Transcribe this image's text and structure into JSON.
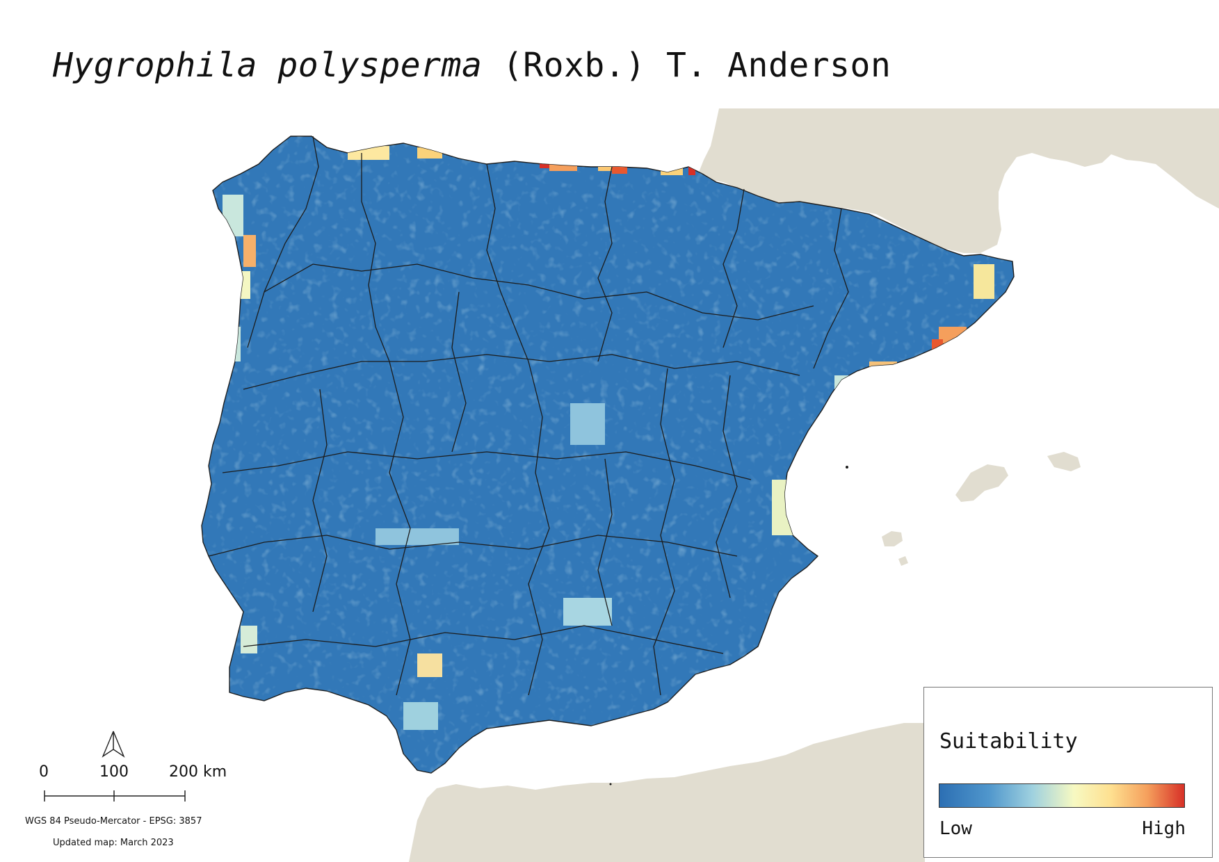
{
  "title": {
    "species": "Hygrophila polysperma",
    "authority": " (Roxb.) T. Anderson"
  },
  "legend": {
    "title": "Suitability",
    "low_label": "Low",
    "high_label": "High",
    "ramp_colors": [
      "#2c6fb3",
      "#4f96cc",
      "#9fd1df",
      "#f3f7c4",
      "#fee090",
      "#f59f5c",
      "#d73027"
    ]
  },
  "scale": {
    "tick_0": "0",
    "tick_100": "100",
    "tick_200": "200 km"
  },
  "notes": {
    "crs": "WGS 84 Pseudo-Mercator  - EPSG: 3857",
    "updated": "Updated map: March 2023"
  },
  "map": {
    "land_color": "#e1ddd0",
    "sea_color": "#ffffff",
    "low_color": "#2f75b5",
    "boundary_color": "#1c1c1c"
  }
}
